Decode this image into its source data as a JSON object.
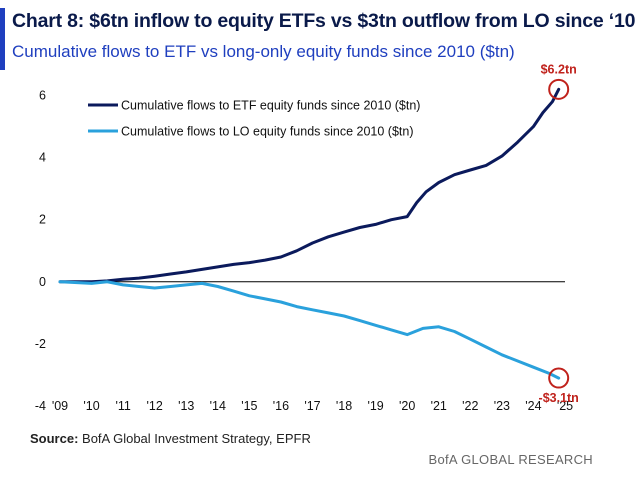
{
  "header": {
    "title": "Chart 8: $6tn inflow to equity ETFs vs $3tn outflow from LO since ‘10",
    "subtitle": "Cumulative flows to ETF vs long-only equity funds since 2010 ($tn)"
  },
  "footer": {
    "source_label": "Source:",
    "source_text": " BofA Global Investment Strategy, EPFR",
    "brand": "BofA GLOBAL RESEARCH"
  },
  "colors": {
    "etf": "#0b1a5c",
    "lo": "#2aa1dc",
    "annotation": "#c0221c",
    "title": "#0a1a4a",
    "subtitle": "#1f3fbf"
  },
  "chart_data": {
    "type": "line",
    "title": "Chart 8: $6tn inflow to equity ETFs vs $3tn outflow from LO since ‘10",
    "subtitle": "Cumulative flows to ETF vs long-only equity funds since 2010 ($tn)",
    "xlabel": "",
    "ylabel": "",
    "x_tick_labels": [
      "'09",
      "'10",
      "'11",
      "'12",
      "'13",
      "'14",
      "'15",
      "'16",
      "'17",
      "'18",
      "'19",
      "'20",
      "'21",
      "'22",
      "'23",
      "'24",
      "'25"
    ],
    "y_ticks": [
      "6",
      "4",
      "2",
      "0",
      "-2",
      "-4"
    ],
    "xlim": [
      2009,
      2025
    ],
    "ylim": [
      -4,
      6.5
    ],
    "legend_position": "top-left",
    "series": [
      {
        "name": "Cumulative flows to ETF equity funds since 2010 ($tn)",
        "color": "#0b1a5c",
        "x": [
          2009.0,
          2010.0,
          2010.5,
          2011.0,
          2011.5,
          2012.0,
          2012.5,
          2013.0,
          2013.5,
          2014.0,
          2014.5,
          2015.0,
          2015.5,
          2016.0,
          2016.5,
          2017.0,
          2017.5,
          2018.0,
          2018.5,
          2019.0,
          2019.5,
          2020.0,
          2020.3,
          2020.6,
          2021.0,
          2021.5,
          2022.0,
          2022.5,
          2023.0,
          2023.5,
          2024.0,
          2024.3,
          2024.6,
          2024.8
        ],
        "y": [
          0.0,
          0.0,
          0.03,
          0.08,
          0.12,
          0.18,
          0.25,
          0.32,
          0.4,
          0.48,
          0.56,
          0.62,
          0.7,
          0.8,
          1.0,
          1.25,
          1.45,
          1.6,
          1.75,
          1.85,
          2.0,
          2.1,
          2.55,
          2.9,
          3.2,
          3.45,
          3.6,
          3.75,
          4.05,
          4.5,
          5.0,
          5.45,
          5.8,
          6.2
        ]
      },
      {
        "name": "Cumulative flows to LO equity funds since 2010 ($tn)",
        "color": "#2aa1dc",
        "x": [
          2009.0,
          2010.0,
          2010.5,
          2011.0,
          2011.5,
          2012.0,
          2012.5,
          2013.0,
          2013.5,
          2014.0,
          2014.5,
          2015.0,
          2015.5,
          2016.0,
          2016.5,
          2017.0,
          2017.5,
          2018.0,
          2018.5,
          2019.0,
          2019.5,
          2020.0,
          2020.5,
          2021.0,
          2021.5,
          2022.0,
          2022.5,
          2023.0,
          2023.5,
          2024.0,
          2024.5,
          2024.8
        ],
        "y": [
          0.0,
          -0.05,
          0.0,
          -0.1,
          -0.15,
          -0.2,
          -0.15,
          -0.1,
          -0.05,
          -0.15,
          -0.3,
          -0.45,
          -0.55,
          -0.65,
          -0.8,
          -0.9,
          -1.0,
          -1.1,
          -1.25,
          -1.4,
          -1.55,
          -1.7,
          -1.5,
          -1.45,
          -1.6,
          -1.85,
          -2.1,
          -2.35,
          -2.55,
          -2.75,
          -2.95,
          -3.1
        ]
      }
    ],
    "annotations": [
      {
        "text": "$6.2tn",
        "x": 2024.8,
        "y": 6.2
      },
      {
        "text": "-$3.1tn",
        "x": 2024.8,
        "y": -3.1
      }
    ]
  }
}
